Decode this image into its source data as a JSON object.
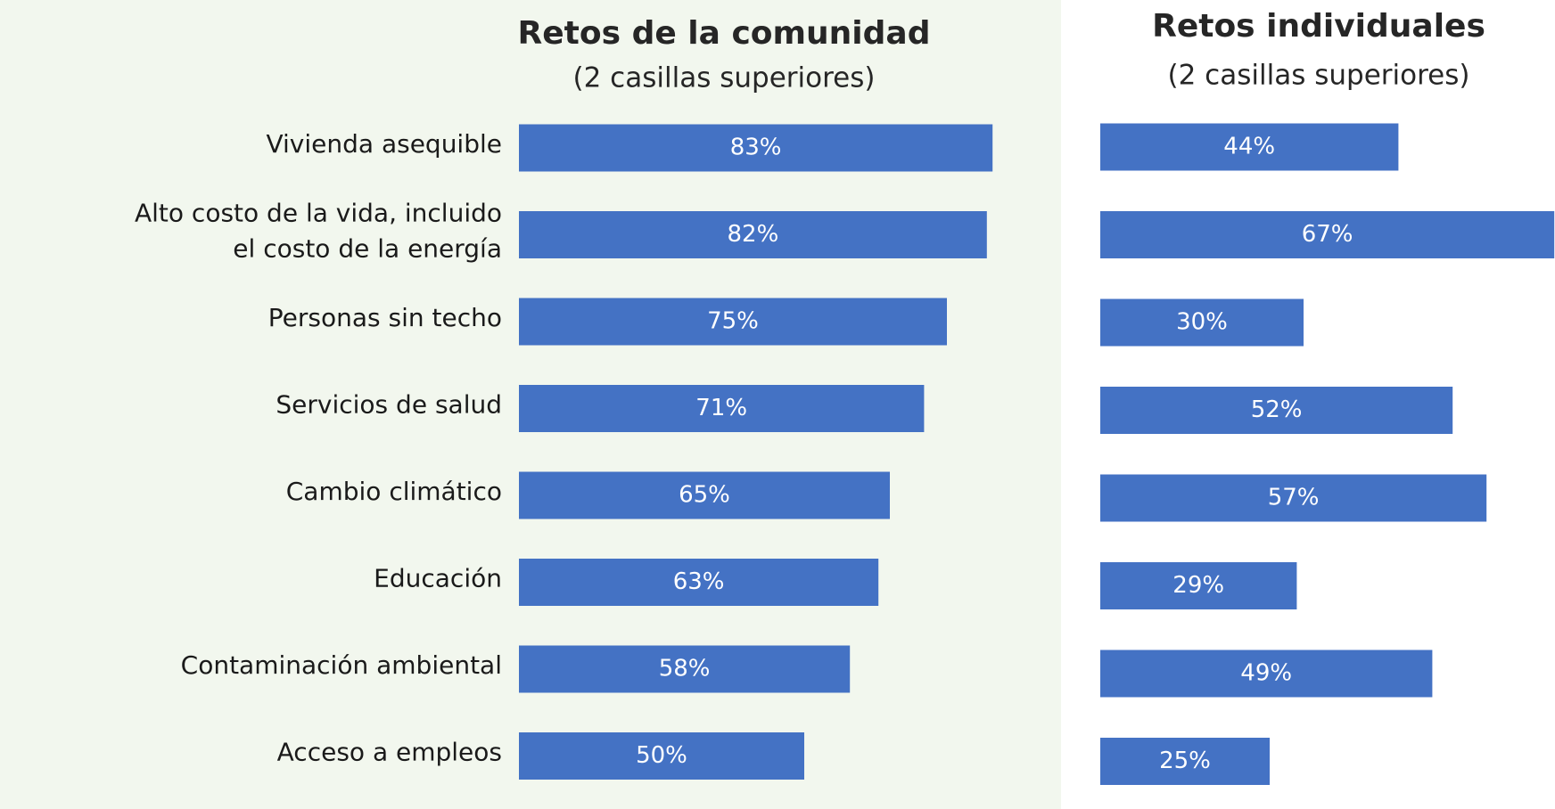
{
  "chart_data": [
    {
      "type": "bar",
      "orientation": "horizontal",
      "title": "Retos de la comunidad",
      "subtitle": "(2 casillas superiores)",
      "categories": [
        "Vivienda asequible",
        "Alto costo de la vida, incluido\nel costo de la energía",
        "Personas sin techo",
        "Servicios de salud",
        "Cambio climático",
        "Educación",
        "Contaminación ambiental",
        "Acceso a empleos"
      ],
      "values": [
        83,
        82,
        75,
        71,
        65,
        63,
        58,
        50
      ],
      "value_labels": [
        "83%",
        "82%",
        "75%",
        "71%",
        "65%",
        "63%",
        "58%",
        "50%"
      ],
      "color": "#4472c4"
    },
    {
      "type": "bar",
      "orientation": "horizontal",
      "title": "Retos individuales",
      "subtitle": "(2 casillas superiores)",
      "values": [
        44,
        67,
        30,
        52,
        57,
        29,
        49,
        25
      ],
      "value_labels": [
        "44%",
        "67%",
        "30%",
        "52%",
        "57%",
        "29%",
        "49%",
        "25%"
      ],
      "color": "#4472c4"
    }
  ]
}
